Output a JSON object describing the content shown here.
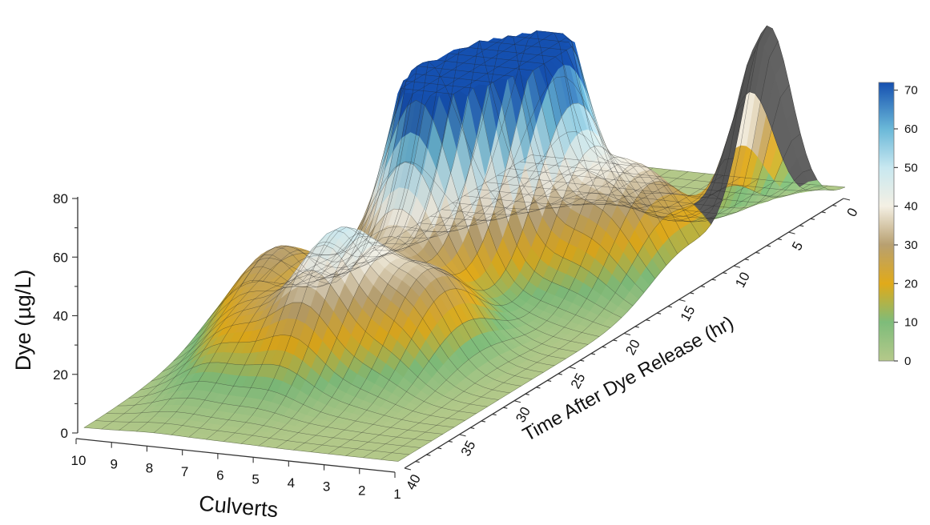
{
  "chart_data": {
    "type": "surface3d",
    "zlabel": "Dye (µg/L)",
    "xlabel": "Culverts",
    "ylabel": "Time After Dye Release (hr)",
    "z_ticks": [
      "0",
      "20",
      "40",
      "60",
      "80"
    ],
    "x_ticks": [
      "10",
      "9",
      "8",
      "7",
      "6",
      "5",
      "4",
      "3",
      "2",
      "1"
    ],
    "y_ticks": [
      "0",
      "5",
      "10",
      "15",
      "20",
      "25",
      "30",
      "35",
      "40"
    ],
    "zlim": [
      0,
      80
    ],
    "xlim": [
      1,
      10
    ],
    "ylim": [
      0,
      40
    ],
    "colorbar": {
      "ticks": [
        "0",
        "10",
        "20",
        "30",
        "40",
        "50",
        "60",
        "70"
      ],
      "range": [
        0,
        72
      ],
      "stops": [
        {
          "value": 0,
          "color": "#b5c98a"
        },
        {
          "value": 10,
          "color": "#7ebc7a"
        },
        {
          "value": 20,
          "color": "#e0aa1a"
        },
        {
          "value": 30,
          "color": "#b8a070"
        },
        {
          "value": 40,
          "color": "#f4f0e4"
        },
        {
          "value": 50,
          "color": "#c8e8f0"
        },
        {
          "value": 60,
          "color": "#6ab8d8"
        },
        {
          "value": 72,
          "color": "#1550b0"
        }
      ]
    },
    "peaks": [
      {
        "culvert": 1,
        "time_hr": 7,
        "dye": 70,
        "color": "#555555"
      },
      {
        "culvert": 2,
        "time_hr": 14,
        "dye": 20
      },
      {
        "culvert": 3,
        "time_hr": 15,
        "dye": 25
      },
      {
        "culvert": 5,
        "time_hr": 15,
        "dye": 68
      },
      {
        "culvert": 6,
        "time_hr": 15,
        "dye": 72
      },
      {
        "culvert": 6,
        "time_hr": 20,
        "dye": 55
      },
      {
        "culvert": 7,
        "time_hr": 18,
        "dye": 60
      },
      {
        "culvert": 6,
        "time_hr": 30,
        "dye": 45
      },
      {
        "culvert": 4,
        "time_hr": 28,
        "dye": 30
      },
      {
        "culvert": 9,
        "time_hr": 26,
        "dye": 28
      },
      {
        "culvert": 8,
        "time_hr": 32,
        "dye": 18
      }
    ]
  }
}
